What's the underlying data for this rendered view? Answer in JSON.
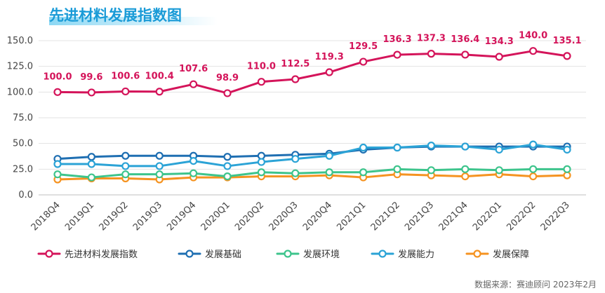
{
  "title": "先进材料发展指数图",
  "source": "数据来源：赛迪顾问 2023年2月",
  "chart_data": {
    "type": "line",
    "categories": [
      "2018Q4",
      "2019Q1",
      "2019Q2",
      "2019Q3",
      "2019Q4",
      "2020Q1",
      "2020Q2",
      "2020Q3",
      "2020Q4",
      "2021Q1",
      "2021Q2",
      "2021Q3",
      "2021Q4",
      "2022Q1",
      "2022Q2",
      "2022Q3"
    ],
    "ylim": [
      0,
      150
    ],
    "yticks": [
      "0.0",
      "25.0",
      "50.0",
      "75.0",
      "100.0",
      "125.0",
      "150.0"
    ],
    "grid": "horizontal",
    "legend_position": "bottom",
    "series": [
      {
        "name": "先进材料发展指数",
        "color": "#D4145A",
        "labeled": true,
        "values": [
          100.0,
          99.6,
          100.6,
          100.4,
          107.6,
          98.9,
          110.0,
          112.5,
          119.3,
          129.5,
          136.3,
          137.3,
          136.4,
          134.3,
          140.0,
          135.1
        ],
        "labels": [
          "100.0",
          "99.6",
          "100.6",
          "100.4",
          "107.6",
          "98.9",
          "110.0",
          "112.5",
          "119.3",
          "129.5",
          "136.3",
          "137.3",
          "136.4",
          "134.3",
          "140.0",
          "135.1"
        ]
      },
      {
        "name": "发展基础",
        "color": "#1F6FB2",
        "values": [
          35,
          37,
          38,
          38,
          38,
          37,
          38,
          39,
          40,
          44,
          46,
          47,
          47,
          47,
          47,
          47
        ]
      },
      {
        "name": "发展环境",
        "color": "#3DC48C",
        "values": [
          20,
          17,
          20,
          20,
          21,
          18,
          22,
          21,
          22,
          22,
          25,
          24,
          25,
          24,
          25,
          25
        ]
      },
      {
        "name": "发展能力",
        "color": "#2BA3D6",
        "values": [
          30,
          30,
          28,
          28,
          33,
          28,
          32,
          35,
          38,
          46,
          46,
          48,
          47,
          44,
          49,
          44
        ]
      },
      {
        "name": "发展保障",
        "color": "#F59321",
        "values": [
          15,
          16,
          16,
          15,
          17,
          17,
          18,
          18,
          19,
          17,
          20,
          19,
          18,
          20,
          18,
          19
        ]
      }
    ]
  }
}
